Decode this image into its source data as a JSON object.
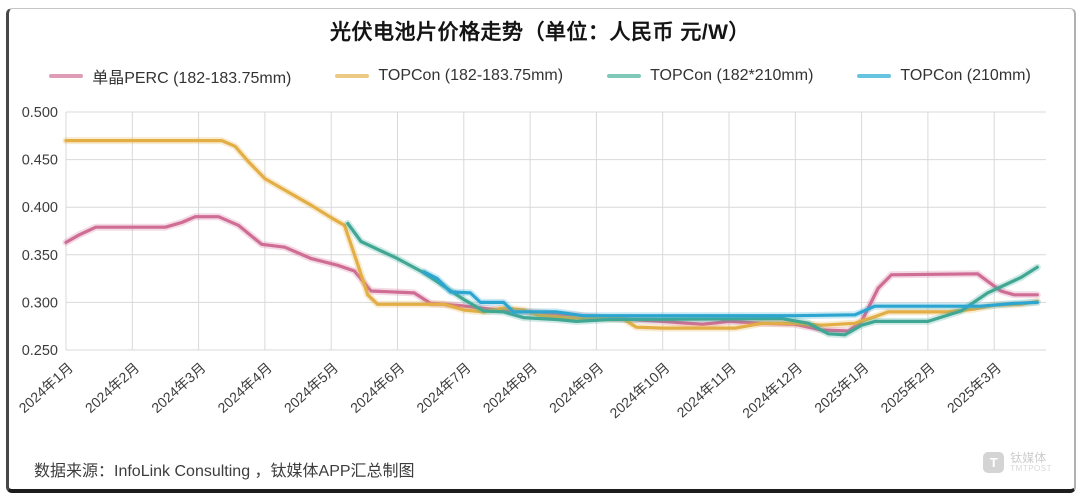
{
  "title": "光伏电池片价格走势（单位：人民币 元/W）",
  "footer": {
    "source_text": "数据来源：InfoLink Consulting ，钛媒体APP汇总制图"
  },
  "watermark": {
    "icon_letter": "T",
    "name_cn": "钛媒体",
    "name_en": "TMTPOST"
  },
  "chart_data": {
    "type": "line",
    "title": "光伏电池片价格走势（单位：人民币 元/W）",
    "xlabel": "",
    "ylabel": "",
    "ylim": [
      0.25,
      0.5
    ],
    "x_range_months": [
      0,
      14.65
    ],
    "grid": true,
    "legend_position": "top",
    "y_ticks": [
      {
        "value": 0.5,
        "label": "0.500"
      },
      {
        "value": 0.45,
        "label": "0.450"
      },
      {
        "value": 0.4,
        "label": "0.400"
      },
      {
        "value": 0.35,
        "label": "0.350"
      },
      {
        "value": 0.3,
        "label": "0.300"
      },
      {
        "value": 0.25,
        "label": "0.250"
      }
    ],
    "x_tick_labels": [
      "2024年1月",
      "2024年2月",
      "2024年3月",
      "2024年4月",
      "2024年5月",
      "2024年6月",
      "2024年7月",
      "2024年8月",
      "2024年9月",
      "2024年10月",
      "2024年11月",
      "2024年12月",
      "2025年1月",
      "2025年2月",
      "2025年3月"
    ],
    "series": [
      {
        "name": "单晶PERC (182-183.75mm)",
        "color": "#cf6d95",
        "swatch_color": "#df9cb6",
        "points": [
          [
            0,
            0.363
          ],
          [
            0.2,
            0.371
          ],
          [
            0.45,
            0.379
          ],
          [
            1.5,
            0.379
          ],
          [
            1.75,
            0.384
          ],
          [
            1.95,
            0.39
          ],
          [
            2.3,
            0.39
          ],
          [
            2.6,
            0.381
          ],
          [
            2.95,
            0.361
          ],
          [
            3.3,
            0.358
          ],
          [
            3.7,
            0.346
          ],
          [
            4.1,
            0.339
          ],
          [
            4.35,
            0.333
          ],
          [
            4.6,
            0.312
          ],
          [
            5.25,
            0.31
          ],
          [
            5.5,
            0.299
          ],
          [
            5.9,
            0.297
          ],
          [
            6.4,
            0.293
          ],
          [
            7.0,
            0.29
          ],
          [
            7.6,
            0.287
          ],
          [
            8.3,
            0.283
          ],
          [
            9.0,
            0.28
          ],
          [
            9.6,
            0.277
          ],
          [
            10.0,
            0.28
          ],
          [
            10.5,
            0.278
          ],
          [
            11.0,
            0.277
          ],
          [
            11.4,
            0.271
          ],
          [
            11.8,
            0.27
          ],
          [
            12.0,
            0.28
          ],
          [
            12.25,
            0.315
          ],
          [
            12.45,
            0.329
          ],
          [
            13.75,
            0.33
          ],
          [
            14.1,
            0.312
          ],
          [
            14.3,
            0.308
          ],
          [
            14.65,
            0.308
          ]
        ]
      },
      {
        "name": "TOPCon (182-183.75mm)",
        "color": "#e3ae45",
        "swatch_color": "#ecca84",
        "points": [
          [
            0,
            0.47
          ],
          [
            2.35,
            0.47
          ],
          [
            2.55,
            0.464
          ],
          [
            2.75,
            0.448
          ],
          [
            3.0,
            0.43
          ],
          [
            3.35,
            0.416
          ],
          [
            3.7,
            0.402
          ],
          [
            4.0,
            0.389
          ],
          [
            4.2,
            0.381
          ],
          [
            4.4,
            0.34
          ],
          [
            4.55,
            0.308
          ],
          [
            4.7,
            0.298
          ],
          [
            5.7,
            0.298
          ],
          [
            6.0,
            0.292
          ],
          [
            6.3,
            0.29
          ],
          [
            6.6,
            0.294
          ],
          [
            6.9,
            0.292
          ],
          [
            7.1,
            0.287
          ],
          [
            7.5,
            0.284
          ],
          [
            8.4,
            0.283
          ],
          [
            8.6,
            0.274
          ],
          [
            9.0,
            0.273
          ],
          [
            10.1,
            0.273
          ],
          [
            10.5,
            0.278
          ],
          [
            11.0,
            0.278
          ],
          [
            11.4,
            0.276
          ],
          [
            11.9,
            0.278
          ],
          [
            12.2,
            0.285
          ],
          [
            12.4,
            0.29
          ],
          [
            13.3,
            0.29
          ],
          [
            13.7,
            0.293
          ],
          [
            14.0,
            0.297
          ],
          [
            14.4,
            0.298
          ],
          [
            14.65,
            0.301
          ]
        ]
      },
      {
        "name": "TOPCon (182*210mm)",
        "color": "#41a795",
        "swatch_color": "#7fc8ba",
        "points": [
          [
            4.25,
            0.383
          ],
          [
            4.45,
            0.364
          ],
          [
            5.0,
            0.346
          ],
          [
            5.4,
            0.331
          ],
          [
            5.85,
            0.31
          ],
          [
            6.0,
            0.303
          ],
          [
            6.3,
            0.291
          ],
          [
            6.6,
            0.29
          ],
          [
            6.9,
            0.284
          ],
          [
            7.4,
            0.282
          ],
          [
            7.7,
            0.28
          ],
          [
            8.2,
            0.282
          ],
          [
            10.8,
            0.283
          ],
          [
            11.2,
            0.278
          ],
          [
            11.5,
            0.267
          ],
          [
            11.75,
            0.266
          ],
          [
            12.0,
            0.276
          ],
          [
            12.2,
            0.28
          ],
          [
            13.0,
            0.28
          ],
          [
            13.5,
            0.291
          ],
          [
            13.9,
            0.31
          ],
          [
            14.4,
            0.326
          ],
          [
            14.65,
            0.337
          ]
        ]
      },
      {
        "name": "TOPCon (210mm)",
        "color": "#2ca6d0",
        "swatch_color": "#66c4e0",
        "points": [
          [
            5.4,
            0.332
          ],
          [
            5.6,
            0.325
          ],
          [
            5.8,
            0.311
          ],
          [
            6.1,
            0.31
          ],
          [
            6.25,
            0.3
          ],
          [
            6.6,
            0.3
          ],
          [
            6.75,
            0.29
          ],
          [
            7.4,
            0.29
          ],
          [
            7.8,
            0.286
          ],
          [
            8.2,
            0.286
          ],
          [
            11.0,
            0.286
          ],
          [
            11.9,
            0.287
          ],
          [
            12.2,
            0.296
          ],
          [
            13.8,
            0.296
          ],
          [
            14.3,
            0.299
          ],
          [
            14.65,
            0.3
          ]
        ]
      }
    ]
  }
}
